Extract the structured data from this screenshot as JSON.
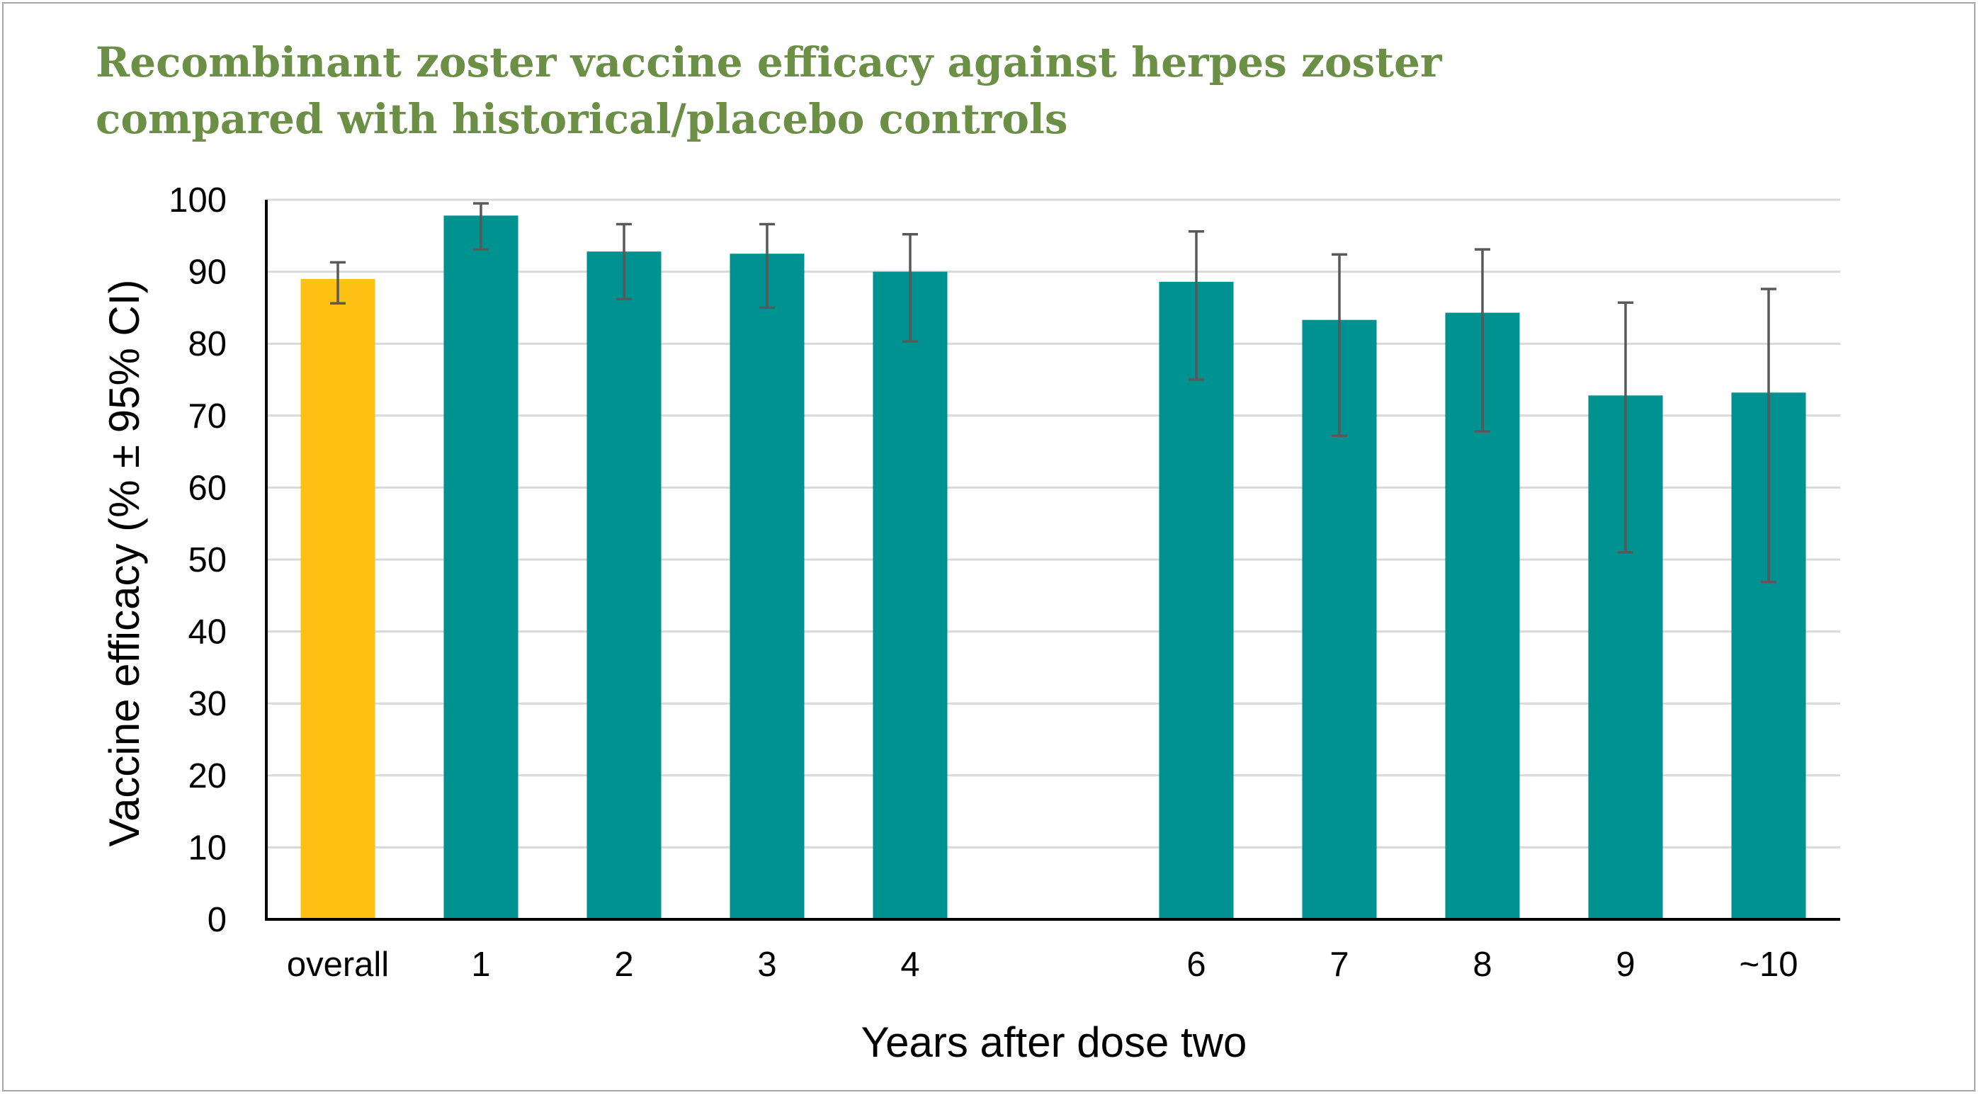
{
  "chart_data": {
    "type": "bar",
    "title_lines": [
      "Recombinant zoster vaccine efficacy against herpes zoster",
      "compared with historical/placebo controls"
    ],
    "xlabel": "Years after dose two",
    "ylabel": "Vaccine efficacy  (% ± 95% CI)",
    "ylim": [
      0,
      100
    ],
    "yticks": [
      0,
      10,
      20,
      30,
      40,
      50,
      60,
      70,
      80,
      90,
      100
    ],
    "grid": true,
    "categories": [
      "overall",
      "1",
      "2",
      "3",
      "4",
      "",
      "6",
      "7",
      "8",
      "9",
      "~10"
    ],
    "values": [
      89.0,
      97.8,
      92.8,
      92.5,
      90.0,
      null,
      88.6,
      83.3,
      84.3,
      72.8,
      73.2
    ],
    "ci_low": [
      85.6,
      93.1,
      86.2,
      85.0,
      80.3,
      null,
      75.0,
      67.2,
      67.8,
      51.0,
      46.9
    ],
    "ci_high": [
      91.3,
      99.5,
      96.6,
      96.6,
      95.2,
      null,
      95.6,
      92.4,
      93.1,
      85.7,
      87.6
    ],
    "colors": {
      "overall": "#ffc114",
      "years": "#009191",
      "error_bar": "#595959",
      "grid": "#d9d9d9",
      "title": "#6a8f45"
    }
  }
}
